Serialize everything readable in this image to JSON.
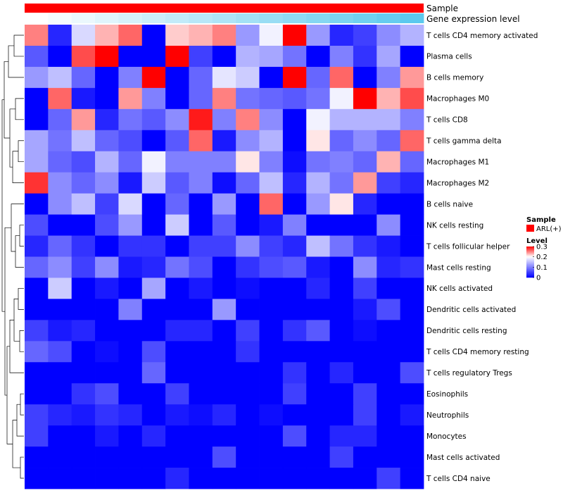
{
  "chart_data": {
    "type": "heatmap",
    "annotation_tracks": [
      {
        "name": "Sample",
        "color": "#ff0000"
      },
      {
        "name": "Gene expression level",
        "gradient": [
          "#ffffff",
          "#5cc9ee"
        ]
      }
    ],
    "rows": [
      "T cells CD4 memory activated",
      "Plasma cells",
      "B cells memory",
      "Macrophages M0",
      "T cells CD8",
      "T cells gamma delta",
      "Macrophages M1",
      "Macrophages M2",
      "B cells naive",
      "NK cells resting",
      "T cells follicular helper",
      "Mast cells resting",
      "NK cells activated",
      "Dendritic cells activated",
      "Dendritic cells resting",
      "T cells CD4 memory resting",
      "T cells regulatory  Tregs",
      "Eosinophils",
      "Neutrophils",
      "Monocytes",
      "Mast cells activated",
      "T cells CD4 naive"
    ],
    "values": [
      [
        0.25,
        0.03,
        0.17,
        0.23,
        0.26,
        0.0,
        0.22,
        0.23,
        0.25,
        0.12,
        0.19,
        0.3,
        0.12,
        0.03,
        0.05,
        0.11,
        0.14
      ],
      [
        0.07,
        0.0,
        0.27,
        0.3,
        0.0,
        0.0,
        0.3,
        0.05,
        0.0,
        0.14,
        0.13,
        0.09,
        0.0,
        0.1,
        0.04,
        0.13,
        0.0
      ],
      [
        0.12,
        0.15,
        0.08,
        0.0,
        0.1,
        0.3,
        0.0,
        0.08,
        0.18,
        0.16,
        0.0,
        0.3,
        0.08,
        0.26,
        0.0,
        0.1,
        0.24
      ],
      [
        0.0,
        0.26,
        0.02,
        0.0,
        0.24,
        0.1,
        0.0,
        0.08,
        0.25,
        0.09,
        0.08,
        0.07,
        0.09,
        0.19,
        0.3,
        0.23,
        0.27
      ],
      [
        0.0,
        0.08,
        0.24,
        0.03,
        0.09,
        0.07,
        0.11,
        0.29,
        0.1,
        0.25,
        0.11,
        0.0,
        0.19,
        0.14,
        0.14,
        0.14,
        0.1
      ],
      [
        0.13,
        0.09,
        0.15,
        0.08,
        0.06,
        0.0,
        0.07,
        0.26,
        0.02,
        0.11,
        0.14,
        0.0,
        0.21,
        0.08,
        0.11,
        0.08,
        0.26
      ],
      [
        0.13,
        0.08,
        0.06,
        0.14,
        0.08,
        0.19,
        0.1,
        0.1,
        0.1,
        0.21,
        0.1,
        0.01,
        0.09,
        0.1,
        0.08,
        0.23,
        0.08
      ],
      [
        0.28,
        0.11,
        0.08,
        0.11,
        0.02,
        0.16,
        0.07,
        0.1,
        0.01,
        0.08,
        0.15,
        0.03,
        0.14,
        0.09,
        0.24,
        0.05,
        0.03
      ],
      [
        0.0,
        0.11,
        0.15,
        0.05,
        0.17,
        0.0,
        0.08,
        0.0,
        0.12,
        0.0,
        0.26,
        0.0,
        0.12,
        0.21,
        0.03,
        0.0,
        0.0
      ],
      [
        0.06,
        0.0,
        0.0,
        0.06,
        0.12,
        0.0,
        0.16,
        0.0,
        0.07,
        0.0,
        0.02,
        0.1,
        0.0,
        0.0,
        0.0,
        0.11,
        0.0
      ],
      [
        0.03,
        0.08,
        0.04,
        0.0,
        0.04,
        0.04,
        0.0,
        0.05,
        0.05,
        0.11,
        0.05,
        0.03,
        0.15,
        0.09,
        0.04,
        0.02,
        0.0
      ],
      [
        0.08,
        0.11,
        0.05,
        0.11,
        0.02,
        0.03,
        0.09,
        0.06,
        0.0,
        0.04,
        0.06,
        0.07,
        0.02,
        0.0,
        0.11,
        0.03,
        0.04
      ],
      [
        0.0,
        0.16,
        0.0,
        0.02,
        0.0,
        0.13,
        0.0,
        0.02,
        0.0,
        0.01,
        0.0,
        0.0,
        0.03,
        0.0,
        0.05,
        0.0,
        0.0
      ],
      [
        0.0,
        0.0,
        0.0,
        0.0,
        0.1,
        0.0,
        0.0,
        0.0,
        0.12,
        0.0,
        0.0,
        0.0,
        0.0,
        0.0,
        0.02,
        0.06,
        0.0
      ],
      [
        0.05,
        0.02,
        0.03,
        0.0,
        0.0,
        0.0,
        0.03,
        0.03,
        0.0,
        0.05,
        0.0,
        0.04,
        0.07,
        0.0,
        0.01,
        0.0,
        0.0
      ],
      [
        0.08,
        0.06,
        0.0,
        0.01,
        0.0,
        0.06,
        0.0,
        0.0,
        0.0,
        0.04,
        0.0,
        0.0,
        0.0,
        0.0,
        0.0,
        0.0,
        0.0
      ],
      [
        0.0,
        0.0,
        0.0,
        0.0,
        0.0,
        0.08,
        0.0,
        0.0,
        0.0,
        0.0,
        0.0,
        0.04,
        0.0,
        0.03,
        0.0,
        0.0,
        0.06
      ],
      [
        0.0,
        0.0,
        0.04,
        0.06,
        0.0,
        0.0,
        0.05,
        0.0,
        0.0,
        0.0,
        0.0,
        0.05,
        0.0,
        0.0,
        0.05,
        0.0,
        0.0
      ],
      [
        0.05,
        0.03,
        0.02,
        0.04,
        0.03,
        0.0,
        0.02,
        0.01,
        0.03,
        0.0,
        0.01,
        0.0,
        0.0,
        0.0,
        0.05,
        0.0,
        0.02
      ],
      [
        0.05,
        0.0,
        0.0,
        0.02,
        0.0,
        0.03,
        0.0,
        0.0,
        0.0,
        0.0,
        0.0,
        0.06,
        0.0,
        0.03,
        0.03,
        0.0,
        0.0
      ],
      [
        0.0,
        0.0,
        0.0,
        0.0,
        0.0,
        0.0,
        0.0,
        0.0,
        0.06,
        0.0,
        0.0,
        0.0,
        0.0,
        0.05,
        0.0,
        0.0,
        0.0
      ],
      [
        0.0,
        0.0,
        0.0,
        0.0,
        0.0,
        0.0,
        0.03,
        0.0,
        0.0,
        0.0,
        0.0,
        0.0,
        0.0,
        0.0,
        0.0,
        0.05,
        0.0
      ]
    ],
    "color_scale": {
      "min": 0,
      "mid": 0.2,
      "max": 0.3,
      "colors": [
        "#0000ff",
        "#ffffff",
        "#ff0000"
      ]
    },
    "legend": {
      "sample_title": "Sample",
      "sample_label": "ARL(+)",
      "sample_color": "#ff0000",
      "level_title": "Level",
      "ticks": [
        0.3,
        0.2,
        0.1,
        0
      ],
      "tick_labels": [
        "0.3",
        "0.2",
        "0.1",
        "0"
      ]
    },
    "dendrogram": "row"
  }
}
